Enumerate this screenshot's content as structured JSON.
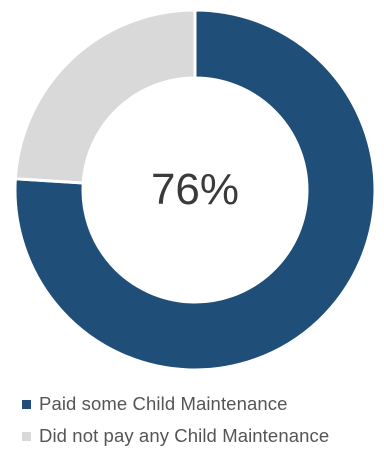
{
  "chart_data": {
    "type": "pie",
    "variant": "donut",
    "center_label": "76%",
    "slices": [
      {
        "label": "Paid some Child Maintenance",
        "value": 76,
        "color": "#1f4e79"
      },
      {
        "label": "Did not pay any Child Maintenance",
        "value": 24,
        "color": "#d9d9d9"
      }
    ],
    "start_angle_deg": 0,
    "direction": "clockwise",
    "legend_position": "bottom-left"
  }
}
